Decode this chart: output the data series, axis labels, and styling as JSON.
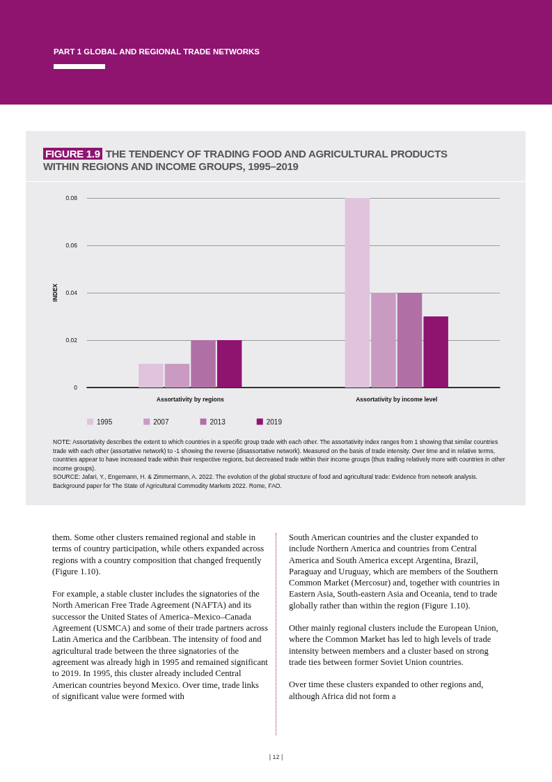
{
  "chart_data": {
    "type": "bar",
    "title": "THE TENDENCY OF TRADING FOOD AND AGRICULTURAL PRODUCTS WITHIN REGIONS AND INCOME GROUPS, 1995–2019",
    "ylabel": "INDEX",
    "categories": [
      "Assortativity by regions",
      "Assortativity by income level"
    ],
    "series": [
      {
        "name": "1995",
        "color": "#dfc4dc",
        "values": [
          0.01,
          0.08
        ]
      },
      {
        "name": "2007",
        "color": "#c99bc2",
        "values": [
          0.01,
          0.04
        ]
      },
      {
        "name": "2013",
        "color": "#b070a6",
        "values": [
          0.02,
          0.04
        ]
      },
      {
        "name": "2019",
        "color": "#8e1470",
        "values": [
          0.02,
          0.03
        ]
      }
    ],
    "ylim": [
      0,
      0.08
    ],
    "yticks": [
      0,
      0.02,
      0.04,
      0.06,
      0.08
    ],
    "grid": "y",
    "legend": "bottom left",
    "annotations": [
      "PART 1 GLOBAL AND REGIONAL TRADE NETWORKS",
      "FIGURE 1.9",
      "NOTE: Assortativity describes the extent to which countries in a specific group trade with each other. The assortativity index ranges from 1 showing that similar countries trade with each other (assortative network) to -1 showing the reverse (disassortative network). Measured on the basis of trade intensity. Over time and in relative terms, countries appear to have increased trade within their respective regions, but decreased trade within their income groups (thus trading relatively more with countries in other income groups).",
      "SOURCE: Jafari, Y., Engemann, H. & Zimmermann, A. 2022. The evolution of the global structure of food and agricultural trade: Evidence from network analysis. Background paper for The State of Agricultural Commodity Markets 2022. Rome, FAO.",
      "them. Some other clusters remained regional and stable in terms of country participation, while others expanded across regions with a country composition that changed frequently (Figure 1.10).",
      "For example, a stable cluster includes the signatories of the North American Free Trade Agreement (NAFTA) and its successor the United States of America–Mexico–Canada Agreement (USMCA) and some of their trade partners across Latin America and the Caribbean. The intensity of food and agricultural trade between the three signatories of the agreement was already high in 1995 and remained significant to 2019. In 1995, this cluster already included Central American countries beyond Mexico. Over time, trade links of significant value were formed with",
      "South American countries and the cluster expanded to include Northern America and countries from Central America and South America except Argentina, Brazil, Paraguay and Uruguay, which are members of the Southern Common Market (Mercosur) and, together with countries in Eastern Asia, South-eastern Asia and Oceania, tend to trade globally rather than within the region (Figure 1.10).",
      "Other mainly regional clusters include the European Union, where the Common Market has led to high levels of trade intensity between members and a cluster based on strong trade ties between former Soviet Union countries.",
      "Over time these clusters expanded to other regions and, although Africa did not form a",
      "| 12 |"
    ]
  }
}
